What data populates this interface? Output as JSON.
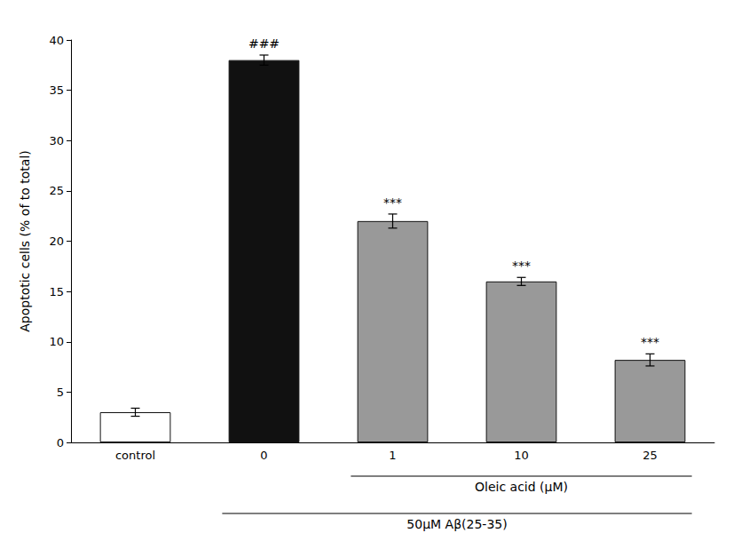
{
  "chart_data": {
    "type": "bar",
    "categories": [
      "control",
      "0",
      "1",
      "10",
      "25"
    ],
    "values": [
      3.0,
      38.0,
      22.0,
      16.0,
      8.2
    ],
    "errors": [
      0.4,
      0.5,
      0.7,
      0.4,
      0.6
    ],
    "colors": [
      "#ffffff",
      "#111111",
      "#999999",
      "#999999",
      "#999999"
    ],
    "ylabel": "Apoptotic cells (% of to total)",
    "ylim": [
      0,
      40
    ],
    "yticks": [
      0,
      5,
      10,
      15,
      20,
      25,
      30,
      35,
      40
    ],
    "grid": false,
    "annotations": [
      {
        "category": "0",
        "text": "###"
      },
      {
        "category": "1",
        "text": "***"
      },
      {
        "category": "10",
        "text": "***"
      },
      {
        "category": "25",
        "text": "***"
      }
    ],
    "xlabel_groups": [
      {
        "label": "Oleic acid (μM)",
        "categories": [
          "1",
          "10",
          "25"
        ]
      },
      {
        "label": "50μM Aβ(25-35)",
        "categories": [
          "0",
          "1",
          "10",
          "25"
        ]
      }
    ]
  }
}
